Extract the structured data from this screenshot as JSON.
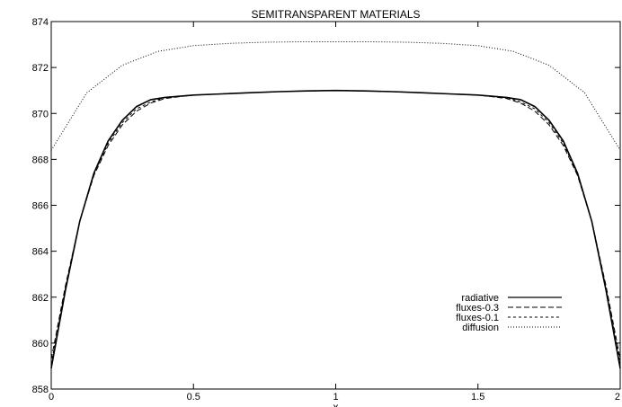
{
  "chart_data": {
    "type": "line",
    "title": "SEMITRANSPARENT MATERIALS",
    "xlabel": "x",
    "ylabel": "",
    "xlim": [
      0,
      2
    ],
    "ylim": [
      858,
      874
    ],
    "x_ticks": [
      0,
      0.5,
      1,
      1.5,
      2
    ],
    "x_tick_labels": [
      "0",
      "0.5",
      "1",
      "1.5",
      "2"
    ],
    "y_ticks": [
      858,
      860,
      862,
      864,
      866,
      868,
      870,
      872,
      874
    ],
    "y_tick_labels": [
      "858",
      "860",
      "862",
      "864",
      "866",
      "868",
      "870",
      "872",
      "874"
    ],
    "grid": false,
    "legend_position": "lower-right",
    "series": [
      {
        "name": "radiative",
        "style": "solid",
        "x": [
          0,
          0.05,
          0.1,
          0.15,
          0.2,
          0.25,
          0.3,
          0.35,
          0.4,
          0.5,
          0.6,
          0.7,
          0.8,
          0.9,
          1.0,
          1.1,
          1.2,
          1.3,
          1.4,
          1.5,
          1.6,
          1.65,
          1.7,
          1.75,
          1.8,
          1.85,
          1.9,
          1.95,
          2.0
        ],
        "y": [
          858.9,
          862.3,
          865.3,
          867.4,
          868.8,
          869.7,
          870.3,
          870.6,
          870.7,
          870.8,
          870.85,
          870.9,
          870.95,
          870.98,
          871.0,
          870.98,
          870.95,
          870.9,
          870.85,
          870.8,
          870.7,
          870.6,
          870.3,
          869.7,
          868.8,
          867.4,
          865.3,
          862.3,
          858.9
        ]
      },
      {
        "name": "fluxes-0.3",
        "style": "dashed",
        "x": [
          0,
          0.05,
          0.1,
          0.15,
          0.2,
          0.25,
          0.3,
          0.35,
          0.4,
          0.5,
          0.6,
          0.7,
          0.8,
          0.9,
          1.0,
          1.1,
          1.2,
          1.3,
          1.4,
          1.5,
          1.6,
          1.65,
          1.7,
          1.75,
          1.8,
          1.85,
          1.9,
          1.95,
          2.0
        ],
        "y": [
          859.3,
          862.5,
          865.3,
          867.3,
          868.6,
          869.5,
          870.1,
          870.45,
          870.65,
          870.8,
          870.85,
          870.9,
          870.95,
          870.98,
          871.0,
          870.98,
          870.95,
          870.9,
          870.85,
          870.8,
          870.65,
          870.45,
          870.1,
          869.5,
          868.6,
          867.3,
          865.3,
          862.5,
          859.3
        ]
      },
      {
        "name": "fluxes-0.1",
        "style": "short-dashed",
        "x": [
          0,
          0.05,
          0.1,
          0.15,
          0.2,
          0.25,
          0.3,
          0.35,
          0.4,
          0.5,
          0.6,
          0.7,
          0.8,
          0.9,
          1.0,
          1.1,
          1.2,
          1.3,
          1.4,
          1.5,
          1.6,
          1.65,
          1.7,
          1.75,
          1.8,
          1.85,
          1.9,
          1.95,
          2.0
        ],
        "y": [
          859.1,
          862.4,
          865.3,
          867.35,
          868.7,
          869.6,
          870.2,
          870.5,
          870.7,
          870.8,
          870.85,
          870.9,
          870.95,
          870.98,
          871.0,
          870.98,
          870.95,
          870.9,
          870.85,
          870.8,
          870.7,
          870.5,
          870.2,
          869.6,
          868.7,
          867.35,
          865.3,
          862.4,
          859.1
        ]
      },
      {
        "name": "diffusion",
        "style": "dotted",
        "x": [
          0,
          0.125,
          0.25,
          0.375,
          0.5,
          0.625,
          0.75,
          0.875,
          1.0,
          1.125,
          1.25,
          1.375,
          1.5,
          1.625,
          1.75,
          1.875,
          2.0
        ],
        "y": [
          868.4,
          870.9,
          872.1,
          872.7,
          872.95,
          873.05,
          873.1,
          873.12,
          873.12,
          873.12,
          873.1,
          873.05,
          872.95,
          872.7,
          872.1,
          870.9,
          868.4
        ]
      }
    ]
  }
}
